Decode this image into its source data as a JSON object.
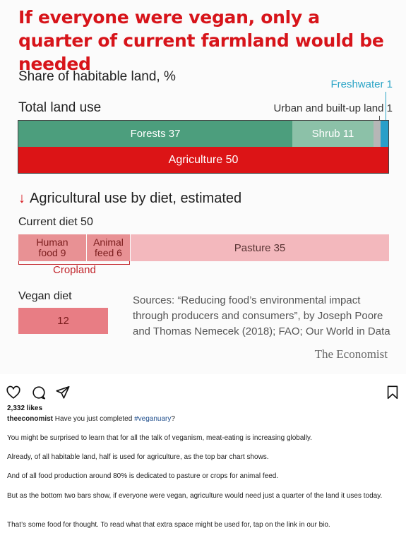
{
  "figure": {
    "headline": "If everyone were vegan, only a quarter of current farmland would be needed",
    "subtitle": "Share of habitable land, %",
    "total_label": "Total land use",
    "freshwater_label": "Freshwater 1",
    "urban_label": "Urban and built-up land 1",
    "segments": {
      "forests": "Forests 37",
      "shrub": "Shrub 11",
      "agriculture": "Agriculture 50"
    },
    "ag_section_title": "Agricultural use by diet, estimated",
    "current_diet_label": "Current diet 50",
    "human_food_line1": "Human",
    "human_food_line2": "food 9",
    "animal_feed_line1": "Animal",
    "animal_feed_line2": "feed 6",
    "pasture": "Pasture 35",
    "cropland": "Cropland",
    "vegan_diet_label": "Vegan diet",
    "vegan_value": "12",
    "sources_line1": "Sources: “Reducing food’s environmental impact",
    "sources_line2": "through producers  and consumers”, by Joseph Poore",
    "sources_line3": "and Thomas Nemecek (2018);  FAO; Our World in Data",
    "brand": "The Economist",
    "colors": {
      "headline": "#d7141a",
      "forests": "#4c9e7d",
      "shrub": "#8cc1a8",
      "urban": "#b6b6b6",
      "freshwater": "#2a9fc9",
      "agriculture": "#dc1416",
      "crop": "#e89194",
      "pasture": "#f3b8bd",
      "vegan": "#e87d84"
    }
  },
  "chart_data": [
    {
      "type": "bar",
      "stacked": true,
      "categories": [
        "Total land use"
      ],
      "series": [
        {
          "name": "Forests",
          "values": [
            37
          ]
        },
        {
          "name": "Shrub",
          "values": [
            11
          ]
        },
        {
          "name": "Urban and built-up land",
          "values": [
            1
          ]
        },
        {
          "name": "Freshwater",
          "values": [
            1
          ]
        },
        {
          "name": "Agriculture",
          "values": [
            50
          ]
        }
      ]
    },
    {
      "type": "bar",
      "stacked": true,
      "categories": [
        "Current diet",
        "Vegan diet"
      ],
      "series": [
        {
          "name": "Human food",
          "values": [
            9,
            null
          ]
        },
        {
          "name": "Animal feed",
          "values": [
            6,
            null
          ]
        },
        {
          "name": "Pasture",
          "values": [
            35,
            null
          ]
        },
        {
          "name": "Vegan diet",
          "values": [
            null,
            12
          ]
        }
      ]
    }
  ],
  "post": {
    "icons": [
      "heart-icon",
      "comment-icon",
      "share-icon",
      "bookmark-icon"
    ],
    "likes": "2,332 likes",
    "username": "theeconomist",
    "caption_text": "Have you just completed ",
    "hashtag": "#veganuary",
    "caption_end": "?",
    "paragraphs": [
      "You might be surprised to learn that for all the talk of veganism, meat-eating is increasing globally.",
      "Already, of all habitable land, half is used for agriculture, as the top bar chart shows.",
      "And of all food production around 80% is dedicated to pasture or crops for animal feed.",
      "But as the bottom two bars show, if everyone were vegan, agriculture would need just a quarter of the land it uses today.",
      "That’s some food for thought. To read what that extra space might be used for, tap on the link in our bio."
    ]
  }
}
